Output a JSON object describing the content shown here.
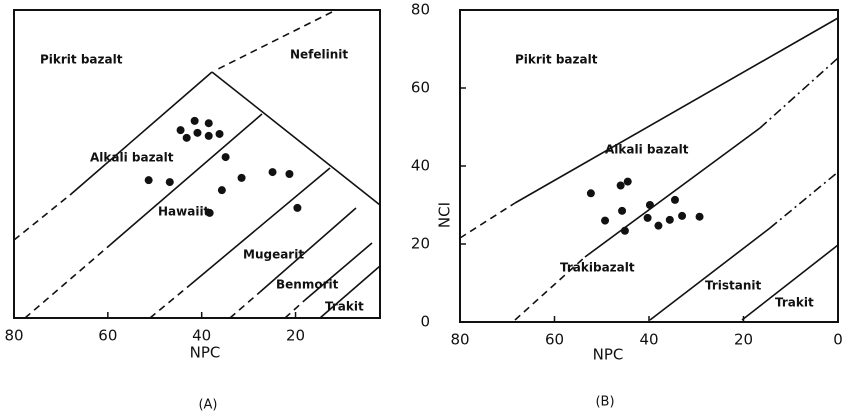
{
  "chart_data": [
    {
      "type": "scatter",
      "xlabel": "NPC",
      "caption": "(A)",
      "color": "#111111",
      "xlim": [
        80,
        2
      ],
      "ylim": [
        0,
        80
      ],
      "xticks": [
        80,
        60,
        40,
        20
      ],
      "x": [
        44.5,
        43.2,
        41.5,
        40.9,
        38.5,
        38.5,
        36.2,
        34.9,
        51.3,
        46.8,
        31.5,
        35.7,
        24.9,
        21.3,
        19.6,
        38.3
      ],
      "values": [
        48.8,
        46.8,
        51.2,
        48.1,
        50.6,
        47.3,
        47.8,
        41.8,
        35.8,
        35.3,
        36.4,
        33.2,
        37.9,
        37.4,
        28.6,
        27.3
      ],
      "annotations": [
        "Pikrit bazalt",
        "Nefelinit",
        "Alkali bazalt",
        "Hawaiit",
        "Mugearit",
        "Benmorit",
        "Trakit"
      ]
    },
    {
      "type": "scatter",
      "xlabel": "NPC",
      "ylabel": "NCI",
      "caption": "(B)",
      "color": "#111111",
      "xlim": [
        80,
        0
      ],
      "ylim": [
        0,
        80
      ],
      "xticks": [
        80,
        60,
        40,
        20,
        0
      ],
      "yticks": [
        0,
        20,
        40,
        60,
        80
      ],
      "x": [
        52.3,
        46,
        44.5,
        49.3,
        45.7,
        45.1,
        39.8,
        40.3,
        38,
        35.6,
        34.5,
        33,
        29.3
      ],
      "values": [
        33,
        35,
        36,
        26,
        28.5,
        23.4,
        30,
        26.7,
        24.7,
        26.2,
        31.3,
        27.2,
        27
      ],
      "annotations": [
        "Pikrit bazalt",
        "Alkali bazalt",
        "Trakibazalt",
        "Tristanit",
        "Trakit"
      ]
    }
  ]
}
